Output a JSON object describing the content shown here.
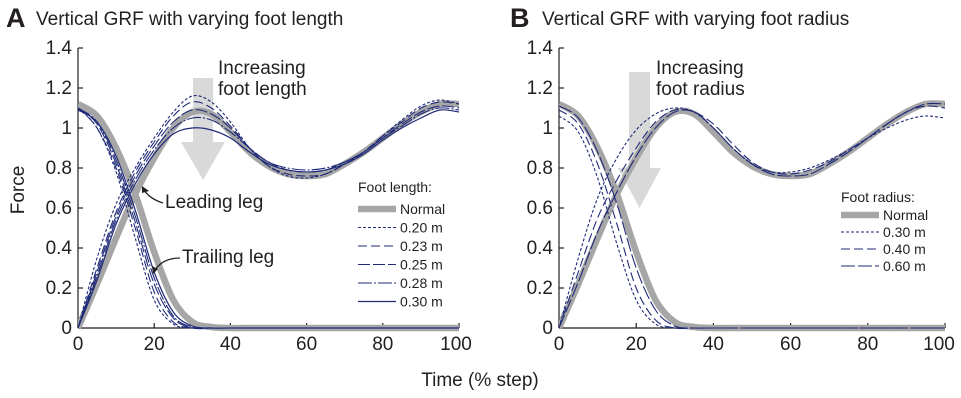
{
  "chart_data": [
    {
      "type": "line",
      "panel_letter": "A",
      "title": "Vertical GRF with varying foot length",
      "xlabel": "Time (% step)",
      "ylabel": "Force",
      "xlim": [
        0,
        100
      ],
      "ylim": [
        0,
        1.4
      ],
      "xticks": [
        "0",
        "20",
        "40",
        "60",
        "80",
        "100"
      ],
      "yticks": [
        "0",
        "0.2",
        "0.4",
        "0.6",
        "0.8",
        "1",
        "1.2",
        "1.4"
      ],
      "arrow_label": [
        "Increasing",
        "foot length"
      ],
      "annotations": [
        "Leading leg",
        "Trailing leg"
      ],
      "legend_title": "Foot length:",
      "legend_position": "center-right",
      "series": [
        {
          "name": "Normal",
          "color": "#a6a6a6",
          "x": [
            0,
            5,
            10,
            15,
            20,
            25,
            30,
            35,
            40,
            45,
            50,
            55,
            60,
            65,
            70,
            75,
            80,
            85,
            90,
            95,
            100
          ],
          "leading": [
            0,
            0.22,
            0.45,
            0.67,
            0.85,
            1.0,
            1.08,
            1.07,
            0.98,
            0.88,
            0.81,
            0.77,
            0.76,
            0.77,
            0.82,
            0.88,
            0.95,
            1.02,
            1.08,
            1.12,
            1.12
          ],
          "trailing": [
            1.12,
            1.06,
            0.9,
            0.67,
            0.38,
            0.14,
            0.03,
            0.005,
            0,
            0,
            0,
            0,
            0,
            0,
            0,
            0,
            0,
            0,
            0,
            0,
            0
          ]
        },
        {
          "name": "0.20 m",
          "color": "#1f2a78",
          "x": [
            0,
            5,
            10,
            15,
            20,
            25,
            30,
            35,
            40,
            45,
            50,
            55,
            60,
            65,
            70,
            75,
            80,
            85,
            90,
            95,
            100
          ],
          "leading": [
            0,
            0.35,
            0.62,
            0.8,
            0.95,
            1.08,
            1.16,
            1.13,
            1.03,
            0.9,
            0.81,
            0.76,
            0.75,
            0.77,
            0.82,
            0.88,
            0.96,
            1.04,
            1.11,
            1.14,
            1.12
          ],
          "trailing": [
            1.1,
            1.0,
            0.78,
            0.45,
            0.14,
            0.02,
            0,
            0,
            0,
            0,
            0,
            0,
            0,
            0,
            0,
            0,
            0,
            0,
            0,
            0,
            0
          ]
        },
        {
          "name": "0.23 m",
          "color": "#1f2a78",
          "x": [
            0,
            5,
            10,
            15,
            20,
            25,
            30,
            35,
            40,
            45,
            50,
            55,
            60,
            65,
            70,
            75,
            80,
            85,
            90,
            95,
            100
          ],
          "leading": [
            0,
            0.3,
            0.58,
            0.78,
            0.93,
            1.06,
            1.13,
            1.1,
            1.01,
            0.9,
            0.81,
            0.77,
            0.76,
            0.77,
            0.82,
            0.88,
            0.96,
            1.03,
            1.1,
            1.13,
            1.12
          ],
          "trailing": [
            1.1,
            1.0,
            0.8,
            0.5,
            0.18,
            0.03,
            0,
            0,
            0,
            0,
            0,
            0,
            0,
            0,
            0,
            0,
            0,
            0,
            0,
            0,
            0
          ]
        },
        {
          "name": "0.25 m",
          "color": "#1f2a78",
          "x": [
            0,
            5,
            10,
            15,
            20,
            25,
            30,
            35,
            40,
            45,
            50,
            55,
            60,
            65,
            70,
            75,
            80,
            85,
            90,
            95,
            100
          ],
          "leading": [
            0,
            0.28,
            0.56,
            0.76,
            0.91,
            1.03,
            1.09,
            1.07,
            1.0,
            0.9,
            0.83,
            0.79,
            0.78,
            0.79,
            0.83,
            0.88,
            0.95,
            1.02,
            1.08,
            1.11,
            1.1
          ],
          "trailing": [
            1.1,
            1.02,
            0.82,
            0.53,
            0.22,
            0.05,
            0,
            0,
            0,
            0,
            0,
            0,
            0,
            0,
            0,
            0,
            0,
            0,
            0,
            0,
            0
          ]
        },
        {
          "name": "0.28 m",
          "color": "#1f2a78",
          "x": [
            0,
            5,
            10,
            15,
            20,
            25,
            30,
            35,
            40,
            45,
            50,
            55,
            60,
            65,
            70,
            75,
            80,
            85,
            90,
            95,
            100
          ],
          "leading": [
            0,
            0.26,
            0.54,
            0.74,
            0.89,
            1.0,
            1.05,
            1.04,
            0.98,
            0.9,
            0.83,
            0.8,
            0.79,
            0.8,
            0.83,
            0.88,
            0.95,
            1.01,
            1.07,
            1.1,
            1.09
          ],
          "trailing": [
            1.1,
            1.03,
            0.84,
            0.56,
            0.25,
            0.06,
            0.005,
            0,
            0,
            0,
            0,
            0,
            0,
            0,
            0,
            0,
            0,
            0,
            0,
            0,
            0
          ]
        },
        {
          "name": "0.30 m",
          "color": "#1f2a78",
          "x": [
            0,
            5,
            10,
            15,
            20,
            25,
            30,
            35,
            40,
            45,
            50,
            55,
            60,
            65,
            70,
            75,
            80,
            85,
            90,
            95,
            100
          ],
          "leading": [
            0,
            0.24,
            0.52,
            0.72,
            0.87,
            0.97,
            1.0,
            0.99,
            0.95,
            0.88,
            0.82,
            0.79,
            0.78,
            0.79,
            0.82,
            0.87,
            0.94,
            1.0,
            1.05,
            1.09,
            1.08
          ],
          "trailing": [
            1.09,
            1.03,
            0.86,
            0.59,
            0.28,
            0.08,
            0.01,
            0,
            0,
            0,
            0,
            0,
            0,
            0,
            0,
            0,
            0,
            0,
            0,
            0,
            0
          ]
        }
      ]
    },
    {
      "type": "line",
      "panel_letter": "B",
      "title": "Vertical GRF with varying foot radius",
      "xlabel": "Time (% step)",
      "ylabel": "Force",
      "xlim": [
        0,
        100
      ],
      "ylim": [
        0,
        1.4
      ],
      "xticks": [
        "0",
        "20",
        "40",
        "60",
        "80",
        "100"
      ],
      "yticks": [
        "0",
        "0.2",
        "0.4",
        "0.6",
        "0.8",
        "1",
        "1.2",
        "1.4"
      ],
      "arrow_label": [
        "Increasing",
        "foot radius"
      ],
      "legend_title": "Foot radius:",
      "legend_position": "center-right",
      "series": [
        {
          "name": "Normal",
          "color": "#a6a6a6",
          "x": [
            0,
            5,
            10,
            15,
            20,
            25,
            30,
            35,
            40,
            45,
            50,
            55,
            60,
            65,
            70,
            75,
            80,
            85,
            90,
            95,
            100
          ],
          "leading": [
            0,
            0.22,
            0.45,
            0.67,
            0.85,
            1.0,
            1.08,
            1.07,
            0.98,
            0.88,
            0.81,
            0.77,
            0.76,
            0.77,
            0.82,
            0.88,
            0.95,
            1.02,
            1.08,
            1.12,
            1.12
          ],
          "trailing": [
            1.12,
            1.06,
            0.9,
            0.67,
            0.38,
            0.14,
            0.03,
            0.005,
            0,
            0,
            0,
            0,
            0,
            0,
            0,
            0,
            0,
            0,
            0,
            0,
            0
          ]
        },
        {
          "name": "0.30 m",
          "color": "#1f2a78",
          "x": [
            0,
            5,
            10,
            15,
            20,
            25,
            30,
            35,
            40,
            45,
            50,
            55,
            60,
            65,
            70,
            75,
            80,
            85,
            90,
            95,
            100
          ],
          "leading": [
            0,
            0.35,
            0.65,
            0.85,
            0.99,
            1.07,
            1.1,
            1.08,
            1.0,
            0.9,
            0.82,
            0.78,
            0.78,
            0.8,
            0.84,
            0.89,
            0.95,
            1.0,
            1.04,
            1.06,
            1.05
          ],
          "trailing": [
            1.06,
            0.98,
            0.75,
            0.42,
            0.14,
            0.02,
            0,
            0,
            0,
            0,
            0,
            0,
            0,
            0,
            0,
            0,
            0,
            0,
            0,
            0,
            0
          ]
        },
        {
          "name": "0.40 m",
          "color": "#1f2a78",
          "x": [
            0,
            5,
            10,
            15,
            20,
            25,
            30,
            35,
            40,
            45,
            50,
            55,
            60,
            65,
            70,
            75,
            80,
            85,
            90,
            95,
            100
          ],
          "leading": [
            0,
            0.28,
            0.55,
            0.74,
            0.9,
            1.03,
            1.09,
            1.08,
            1.02,
            0.92,
            0.83,
            0.78,
            0.77,
            0.79,
            0.83,
            0.89,
            0.95,
            1.02,
            1.08,
            1.11,
            1.1
          ],
          "trailing": [
            1.09,
            1.02,
            0.82,
            0.52,
            0.2,
            0.04,
            0,
            0,
            0,
            0,
            0,
            0,
            0,
            0,
            0,
            0,
            0,
            0,
            0,
            0,
            0
          ]
        },
        {
          "name": "0.60 m",
          "color": "#1f2a78",
          "x": [
            0,
            5,
            10,
            15,
            20,
            25,
            30,
            35,
            40,
            45,
            50,
            55,
            60,
            65,
            70,
            75,
            80,
            85,
            90,
            95,
            100
          ],
          "leading": [
            0,
            0.23,
            0.48,
            0.68,
            0.86,
            1.0,
            1.08,
            1.08,
            1.0,
            0.9,
            0.82,
            0.77,
            0.76,
            0.77,
            0.82,
            0.88,
            0.95,
            1.02,
            1.08,
            1.12,
            1.12
          ],
          "trailing": [
            1.11,
            1.05,
            0.88,
            0.62,
            0.3,
            0.09,
            0.01,
            0,
            0,
            0,
            0,
            0,
            0,
            0,
            0,
            0,
            0,
            0,
            0,
            0,
            0
          ]
        }
      ]
    }
  ]
}
